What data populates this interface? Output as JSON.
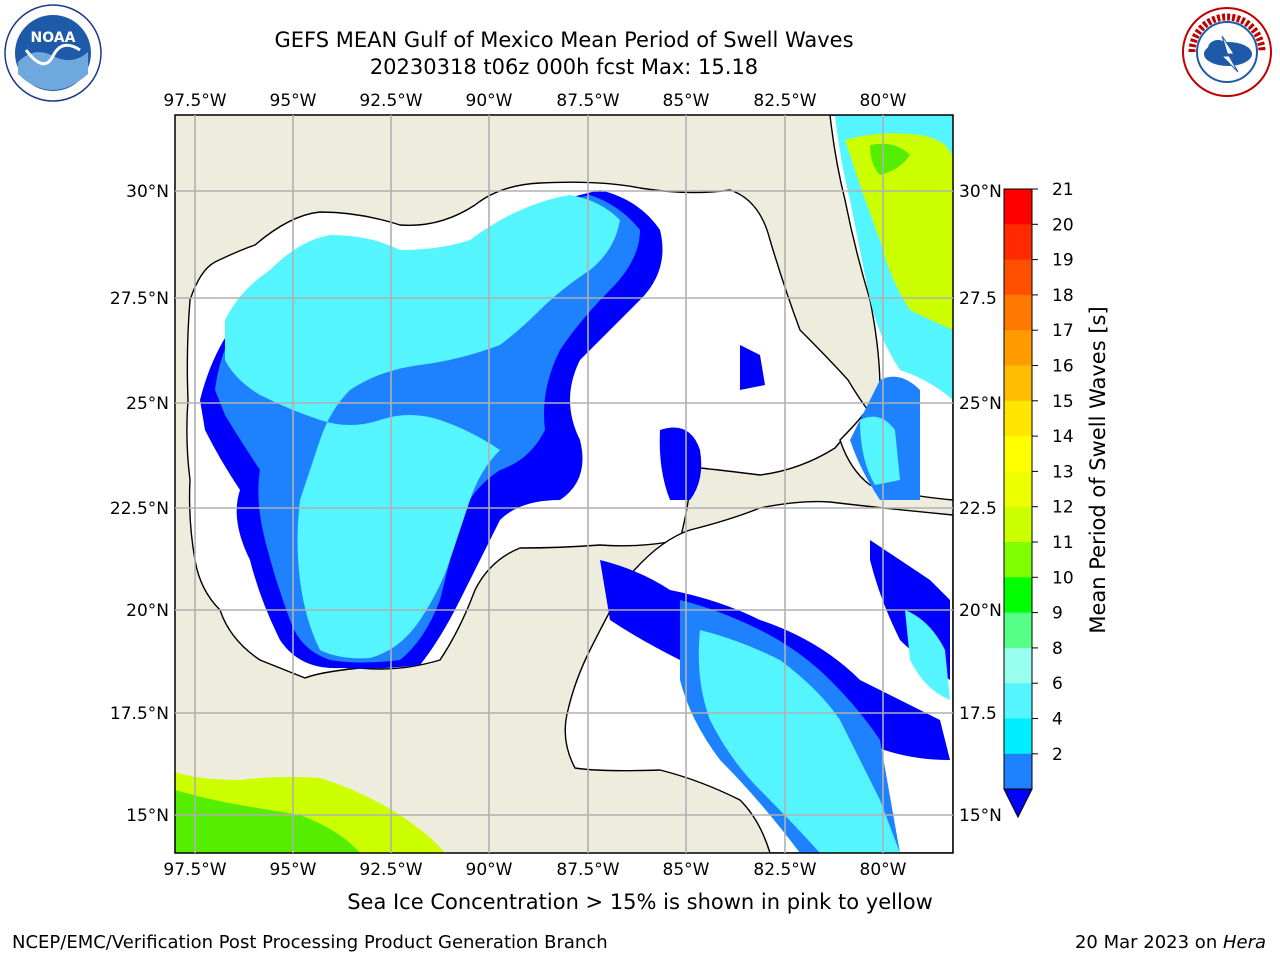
{
  "header": {
    "title": "GEFS MEAN Gulf of Mexico Mean Period of Swell Waves",
    "subtitle": "20230318 t06z 000h fcst   Max: 15.18"
  },
  "map": {
    "lon_labels": [
      "97.5°W",
      "95°W",
      "92.5°W",
      "90°W",
      "87.5°W",
      "85°W",
      "82.5°W",
      "80°W"
    ],
    "lat_labels_left": [
      "30°N",
      "27.5°N",
      "25°N",
      "22.5°N",
      "20°N",
      "17.5°N",
      "15°N"
    ],
    "lat_labels_right": [
      "30°N",
      "27.5",
      "25°N",
      "22.5",
      "20°N",
      "17.5",
      "15°N"
    ],
    "colors": {
      "land": "#eeecdc",
      "ocean_blue": "#0000ff",
      "mid_blue": "#1e82ff",
      "cyan": "#00eeff",
      "light_cyan": "#55f5ff",
      "yellow_green": "#ccff00",
      "green": "#55ee00",
      "gridline": "#b0b0b0"
    }
  },
  "colorbar": {
    "label": "Mean Period of Swell Waves [s]",
    "ticks": [
      "21",
      "20",
      "19",
      "18",
      "17",
      "16",
      "15",
      "14",
      "13",
      "12",
      "11",
      "10",
      "9",
      "8",
      "6",
      "4",
      "2"
    ],
    "colors": [
      "#ff0000",
      "#ff2a00",
      "#ff5000",
      "#ff7800",
      "#ff9a00",
      "#ffbe00",
      "#ffe600",
      "#ffff00",
      "#eeff00",
      "#ccff00",
      "#80ff00",
      "#00ff00",
      "#55ff88",
      "#99ffee",
      "#55f5ff",
      "#00eeff",
      "#1e82ff",
      "#0000ff"
    ]
  },
  "footnote": "Sea Ice Concentration > 15% is shown in pink to yellow",
  "footer": {
    "left": "NCEP/EMC/Verification Post Processing Product Generation Branch",
    "right_date": "20 Mar 2023 on ",
    "right_host": "Hera"
  },
  "logos": {
    "noaa_text": "NOAA",
    "nws_text": "NATIONAL WEATHER SERVICE"
  }
}
